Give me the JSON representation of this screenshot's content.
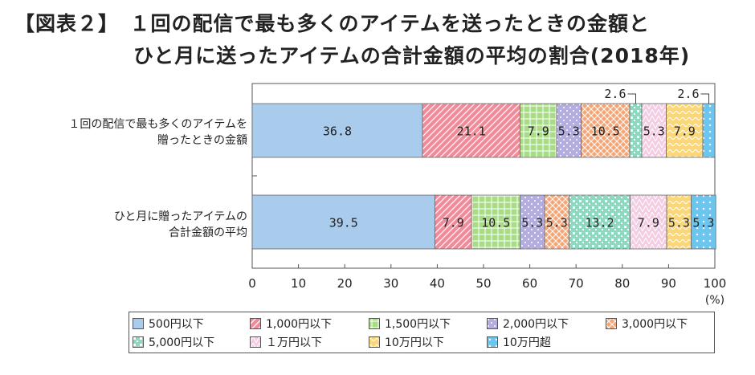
{
  "title": {
    "line1": "【図表２】　１回の配信で最も多くのアイテムを送ったときの金額と",
    "line2": "ひと月に送ったアイテムの合計金額の平均の割合(2018年)"
  },
  "chart_data": {
    "type": "bar",
    "stacked": true,
    "orientation": "horizontal",
    "categories": [
      "１回の配信で最も多くのアイテムを\n贈ったときの金額",
      "ひと月に贈ったアイテムの\n合計金額の平均"
    ],
    "series": [
      {
        "name": "500円以下",
        "values": [
          36.8,
          39.5
        ],
        "color": "#a9cbec",
        "pattern": "solid"
      },
      {
        "name": "1,000円以下",
        "values": [
          21.1,
          7.9
        ],
        "color": "#f08c9a",
        "pattern": "diag"
      },
      {
        "name": "1,500円以下",
        "values": [
          7.9,
          10.5
        ],
        "color": "#a9dc86",
        "pattern": "grid"
      },
      {
        "name": "2,000円以下",
        "values": [
          5.3,
          5.3
        ],
        "color": "#b4aee0",
        "pattern": "dots"
      },
      {
        "name": "3,000円以下",
        "values": [
          10.5,
          5.3
        ],
        "color": "#f5a678",
        "pattern": "cross"
      },
      {
        "name": "5,000円以下",
        "values": [
          2.6,
          13.2
        ],
        "color": "#8fd8c0",
        "pattern": "bigdots"
      },
      {
        "name": "１万円以下",
        "values": [
          5.3,
          7.9
        ],
        "color": "#f4cde4",
        "pattern": "tri"
      },
      {
        "name": "10万円以下",
        "values": [
          7.9,
          5.3
        ],
        "color": "#f9d77a",
        "pattern": "wave"
      },
      {
        "name": "10万円超",
        "values": [
          2.6,
          5.3
        ],
        "color": "#6cc5ef",
        "pattern": "smalldots"
      }
    ],
    "data_labels": [
      [
        "36.8",
        "21.1",
        "7.9",
        "5.3",
        "10.5",
        "",
        "5.3",
        "7.9",
        ""
      ],
      [
        "39.5",
        "7.9",
        "10.5",
        "5.3",
        "5.3",
        "13.2",
        "7.9",
        "5.3",
        "5.3"
      ]
    ],
    "callouts": [
      "2.6",
      "2.6"
    ],
    "xlim": [
      0,
      100
    ],
    "xticks": [
      "0",
      "10",
      "20",
      "30",
      "40",
      "50",
      "60",
      "70",
      "80",
      "90",
      "100"
    ],
    "xunit": "(%)",
    "legend_position": "bottom"
  }
}
